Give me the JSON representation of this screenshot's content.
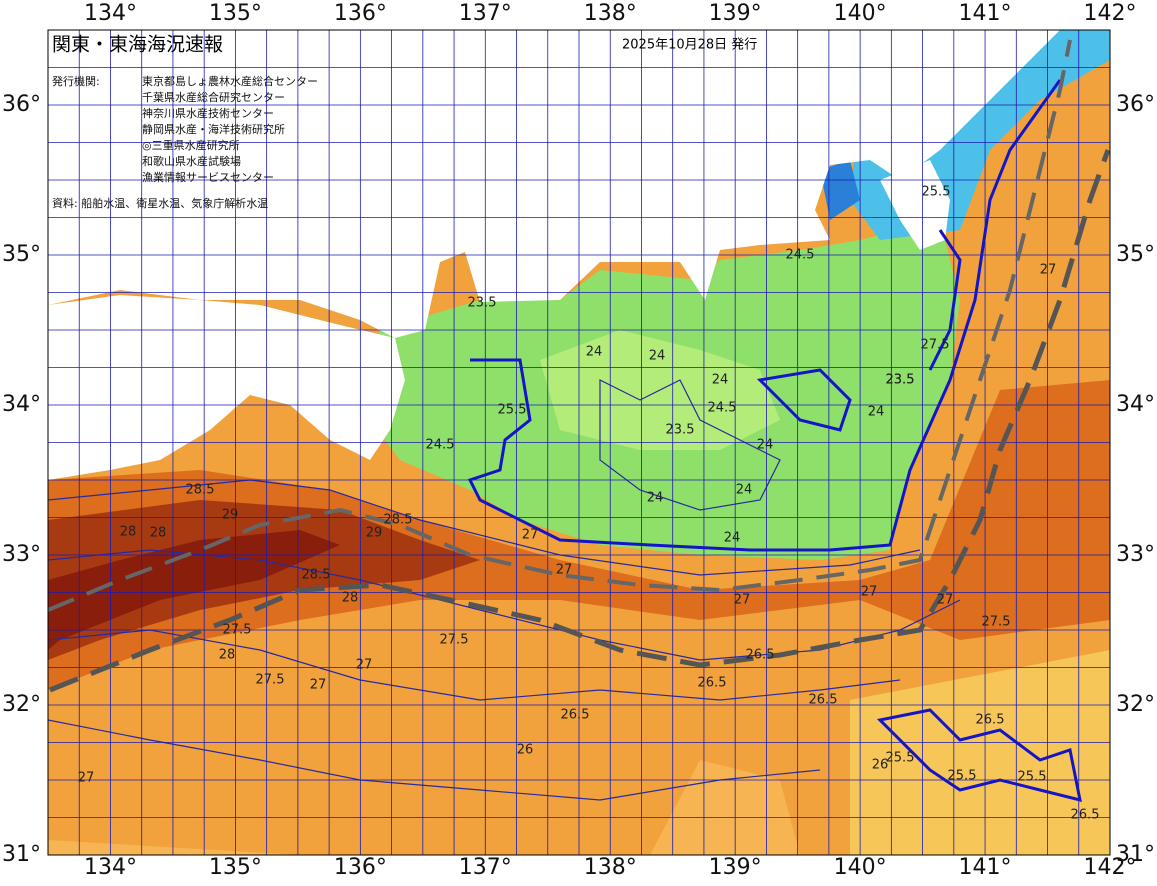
{
  "header": {
    "title": "関東・東海海況速報",
    "date": "2025年10月28日 発行",
    "issuer_label": "発行機関:",
    "issuers": [
      "東京都島しょ農林水産総合センター",
      "千葉県水産総合研究センター",
      "神奈川県水産技術センター",
      "静岡県水産・海洋技術研究所",
      "◎三重県水産研究所",
      "和歌山県水産試験場",
      "漁業情報サービスセンター"
    ],
    "source": "資料: 船舶水温、衛星水温、気象庁解析水温"
  },
  "axes": {
    "lon_ticks": [
      {
        "value": 134,
        "label": "134°"
      },
      {
        "value": 135,
        "label": "135°"
      },
      {
        "value": 136,
        "label": "136°"
      },
      {
        "value": 137,
        "label": "137°"
      },
      {
        "value": 138,
        "label": "138°"
      },
      {
        "value": 139,
        "label": "139°"
      },
      {
        "value": 140,
        "label": "140°"
      },
      {
        "value": 141,
        "label": "141°"
      },
      {
        "value": 142,
        "label": "142°"
      }
    ],
    "lat_ticks": [
      {
        "value": 31,
        "label": "31°"
      },
      {
        "value": 32,
        "label": "32°"
      },
      {
        "value": 33,
        "label": "33°"
      },
      {
        "value": 34,
        "label": "34°"
      },
      {
        "value": 35,
        "label": "35°"
      },
      {
        "value": 36,
        "label": "36°"
      }
    ],
    "lon_range": [
      133.5,
      142
    ],
    "lat_range": [
      31,
      36.5
    ]
  },
  "contour_labels": [
    "24.5",
    "25.5",
    "23.5",
    "24",
    "24",
    "24",
    "24.5",
    "23.5",
    "24",
    "24",
    "24",
    "24",
    "24.5",
    "23.5",
    "28",
    "29",
    "28.5",
    "28.5",
    "29",
    "28",
    "28.5",
    "28",
    "27.5",
    "27",
    "27",
    "27",
    "26.5",
    "26.5",
    "26.5",
    "26",
    "27",
    "27.5",
    "28",
    "27",
    "27.5",
    "27",
    "26.5",
    "25.5",
    "25.5",
    "25.5",
    "26",
    "26.5",
    "27",
    "27.5",
    "24",
    "23.5",
    "25.5",
    "27.5",
    "27",
    "27",
    "26.5"
  ]
}
